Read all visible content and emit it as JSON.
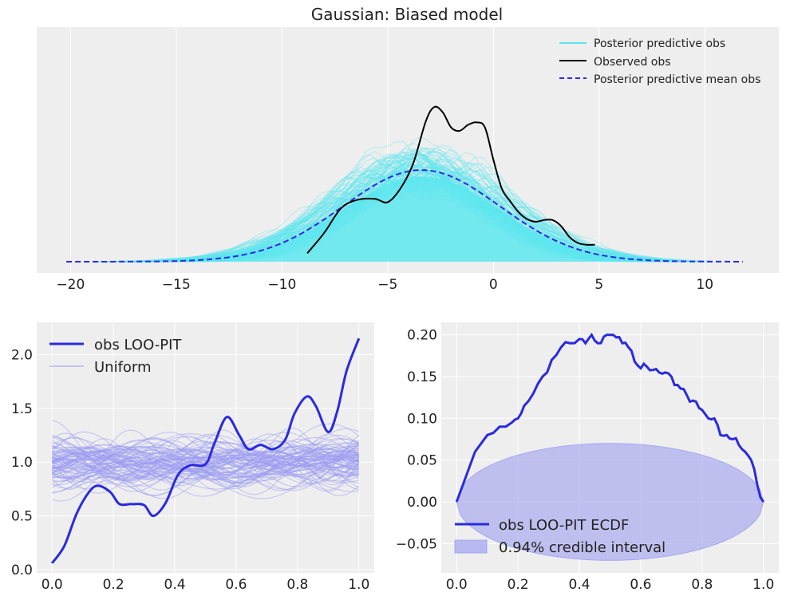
{
  "colors": {
    "panel_bg": "#eeeeee",
    "grid": "#ffffff",
    "posterior": "#5ce6ee",
    "observed": "#000000",
    "mean": "#2a2ae0",
    "loo_pit": "#2a2ae0",
    "uniform": "#9b9bf2",
    "band": "#a6a6f0"
  },
  "chart_data": [
    {
      "type": "line",
      "title": "Gaussian: Biased model",
      "xlabel": "",
      "ylabel": "",
      "xlim": [
        -21.6,
        13.5
      ],
      "xticks": [
        -20,
        -15,
        -10,
        -5,
        0,
        5,
        10
      ],
      "xtick_labels": [
        "−20",
        "−15",
        "−10",
        "−5",
        "0",
        "5",
        "10"
      ],
      "yticks_visible": false,
      "grid": true,
      "legend_placement": "top-right",
      "series": [
        {
          "name": "Posterior predictive obs",
          "style": "many-thin",
          "center": -3.5,
          "sd": 3.7,
          "x_range": [
            -20.2,
            11.8
          ]
        },
        {
          "name": "Observed obs",
          "style": "solid",
          "x": [
            -8.8,
            -8.0,
            -7.2,
            -6.4,
            -5.6,
            -5.0,
            -4.4,
            -3.8,
            -3.2,
            -2.8,
            -2.4,
            -2.0,
            -1.6,
            -1.2,
            -0.8,
            -0.4,
            0.0,
            0.4,
            0.8,
            1.2,
            1.6,
            2.0,
            2.4,
            2.8,
            3.2,
            3.6,
            4.0,
            4.4,
            4.8
          ],
          "y": [
            0.01,
            0.034,
            0.063,
            0.073,
            0.074,
            0.07,
            0.086,
            0.115,
            0.165,
            0.182,
            0.176,
            0.158,
            0.154,
            0.161,
            0.164,
            0.158,
            0.12,
            0.086,
            0.071,
            0.058,
            0.05,
            0.047,
            0.049,
            0.049,
            0.042,
            0.029,
            0.022,
            0.02,
            0.02
          ]
        },
        {
          "name": "Posterior predictive mean obs",
          "style": "dashed",
          "center": -3.4,
          "sd": 3.7,
          "x_range": [
            -20.2,
            11.8
          ]
        }
      ]
    },
    {
      "type": "line",
      "title": "",
      "xlabel": "",
      "ylabel": "",
      "xlim": [
        -0.05,
        1.05
      ],
      "ylim": [
        -0.03,
        2.3
      ],
      "xticks": [
        0.0,
        0.2,
        0.4,
        0.6,
        0.8,
        1.0
      ],
      "xtick_labels": [
        "0.0",
        "0.2",
        "0.4",
        "0.6",
        "0.8",
        "1.0"
      ],
      "yticks": [
        0.0,
        0.5,
        1.0,
        1.5,
        2.0
      ],
      "ytick_labels": [
        "0.0",
        "0.5",
        "1.0",
        "1.5",
        "2.0"
      ],
      "grid": true,
      "legend_placement": "top-left",
      "series": [
        {
          "name": "obs LOO-PIT",
          "style": "solid",
          "x": [
            0.0,
            0.04,
            0.08,
            0.12,
            0.15,
            0.19,
            0.22,
            0.26,
            0.3,
            0.33,
            0.37,
            0.41,
            0.45,
            0.5,
            0.53,
            0.57,
            0.61,
            0.64,
            0.68,
            0.72,
            0.76,
            0.79,
            0.83,
            0.86,
            0.9,
            0.93,
            0.96,
            1.0
          ],
          "y": [
            0.06,
            0.22,
            0.52,
            0.72,
            0.78,
            0.72,
            0.61,
            0.61,
            0.6,
            0.5,
            0.62,
            0.88,
            0.97,
            0.98,
            1.18,
            1.42,
            1.25,
            1.12,
            1.16,
            1.12,
            1.21,
            1.45,
            1.61,
            1.52,
            1.28,
            1.48,
            1.85,
            2.15
          ]
        },
        {
          "name": "Uniform",
          "style": "many-thin",
          "count": 90,
          "typical_range": [
            0.35,
            1.75
          ]
        }
      ]
    },
    {
      "type": "line",
      "title": "",
      "xlabel": "",
      "ylabel": "",
      "xlim": [
        -0.05,
        1.05
      ],
      "ylim": [
        -0.085,
        0.215
      ],
      "xticks": [
        0.0,
        0.2,
        0.4,
        0.6,
        0.8,
        1.0
      ],
      "xtick_labels": [
        "0.0",
        "0.2",
        "0.4",
        "0.6",
        "0.8",
        "1.0"
      ],
      "yticks": [
        -0.05,
        0.0,
        0.05,
        0.1,
        0.15,
        0.2
      ],
      "ytick_labels": [
        "−0.05",
        "0.00",
        "0.05",
        "0.10",
        "0.15",
        "0.20"
      ],
      "grid": true,
      "legend_placement": "bottom-left",
      "series": [
        {
          "name": "obs LOO-PIT ECDF",
          "style": "solid",
          "x": [
            0.0,
            0.03,
            0.06,
            0.1,
            0.14,
            0.18,
            0.2,
            0.22,
            0.25,
            0.28,
            0.31,
            0.34,
            0.37,
            0.4,
            0.42,
            0.44,
            0.46,
            0.48,
            0.5,
            0.52,
            0.54,
            0.56,
            0.58,
            0.6,
            0.62,
            0.64,
            0.66,
            0.68,
            0.7,
            0.72,
            0.74,
            0.76,
            0.78,
            0.8,
            0.82,
            0.84,
            0.86,
            0.88,
            0.9,
            0.92,
            0.94,
            0.96,
            0.98,
            1.0
          ],
          "y": [
            0.0,
            0.03,
            0.06,
            0.08,
            0.09,
            0.095,
            0.1,
            0.115,
            0.13,
            0.15,
            0.17,
            0.185,
            0.19,
            0.195,
            0.19,
            0.2,
            0.19,
            0.198,
            0.2,
            0.197,
            0.19,
            0.185,
            0.168,
            0.16,
            0.162,
            0.158,
            0.155,
            0.155,
            0.15,
            0.14,
            0.135,
            0.12,
            0.12,
            0.11,
            0.1,
            0.1,
            0.08,
            0.08,
            0.075,
            0.068,
            0.06,
            0.05,
            0.02,
            0.0
          ]
        },
        {
          "name": "0.94% credible interval",
          "style": "band",
          "lower_peak": -0.07,
          "upper_peak": 0.07
        }
      ]
    }
  ]
}
